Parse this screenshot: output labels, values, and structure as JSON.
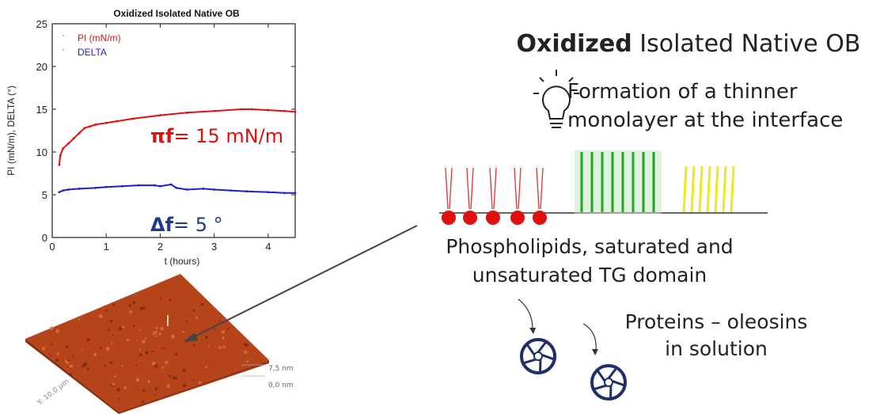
{
  "panel_title_bold": "Oxidized",
  "panel_title_rest": " Isolated Native OB",
  "finding_line1": "Formation of a thinner",
  "finding_line2": "monolayer at the interface",
  "caption_lipids_line1": "Phospholipids, saturated and",
  "caption_lipids_line2": "unsaturated TG domain",
  "caption_proteins_line1": "Proteins – oleosins",
  "caption_proteins_line2": "in solution",
  "annotation_pi_symbol": "πf",
  "annotation_pi_value": "= 15 mN/m",
  "annotation_delta_symbol": "Δf",
  "annotation_delta_value": "= 5 °",
  "afm_scale_top": "7,5 nm",
  "afm_scale_bottom": "0,0 nm",
  "afm_axis_label": "Y: 10,0 µm",
  "colors": {
    "pi": "#e01010",
    "delta": "#1f1fd0",
    "annotation_pi": "#e01010",
    "annotation_delta": "#1f3a8a",
    "afm": "#b5441b"
  },
  "chart_data": {
    "type": "line",
    "title": "Oxidized Isolated Native OB",
    "xlabel": "t  (hours)",
    "ylabel": "PI (mN/m), DELTA (°)",
    "xlim": [
      0,
      4.5
    ],
    "ylim": [
      0,
      25
    ],
    "x_ticks": [
      0,
      1,
      2,
      3,
      4
    ],
    "y_ticks": [
      0,
      5,
      10,
      15,
      20,
      25
    ],
    "legend_position": "top-left",
    "series": [
      {
        "name": "PI (mN/m)",
        "color": "#e01010",
        "x": [
          0.13,
          0.15,
          0.2,
          0.3,
          0.4,
          0.5,
          0.6,
          0.7,
          0.8,
          1.0,
          1.2,
          1.5,
          2.0,
          2.5,
          3.0,
          3.5,
          3.7,
          4.0,
          4.3,
          4.5
        ],
        "y": [
          8.5,
          9.6,
          10.4,
          11.0,
          11.6,
          12.2,
          12.8,
          13.0,
          13.2,
          13.4,
          13.6,
          13.9,
          14.3,
          14.6,
          14.8,
          15.0,
          15.0,
          14.9,
          14.8,
          14.7
        ]
      },
      {
        "name": "DELTA",
        "color": "#1f1fd0",
        "x": [
          0.13,
          0.2,
          0.3,
          0.5,
          0.8,
          1.0,
          1.3,
          1.6,
          1.9,
          2.0,
          2.2,
          2.3,
          2.5,
          2.8,
          3.0,
          3.3,
          3.6,
          4.0,
          4.3,
          4.5
        ],
        "y": [
          5.3,
          5.5,
          5.6,
          5.7,
          5.8,
          5.9,
          6.0,
          6.1,
          6.1,
          6.0,
          6.2,
          5.8,
          5.6,
          5.7,
          5.6,
          5.5,
          5.4,
          5.3,
          5.2,
          5.2
        ]
      }
    ]
  }
}
